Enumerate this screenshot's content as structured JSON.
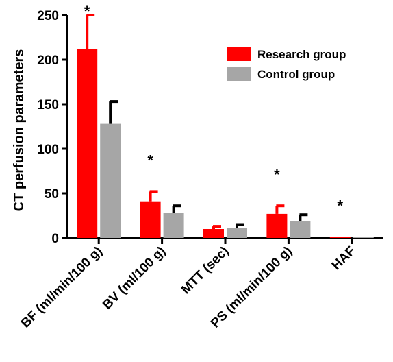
{
  "chart_data": {
    "type": "bar",
    "ylabel": "CT perfusion parameters",
    "xlabel": "",
    "ylim": [
      0,
      250
    ],
    "yticks": [
      0,
      50,
      100,
      150,
      200,
      250
    ],
    "ytick_labels": [
      "0",
      "50",
      "100",
      "150",
      "200",
      "250"
    ],
    "categories": [
      "BF (ml/min/100 g)",
      "BV (ml/100 g)",
      "MTT (sec)",
      "PS (ml/min/100 g)",
      "HAF"
    ],
    "series": [
      {
        "name": "Research group",
        "color": "#ff0000",
        "values": [
          212,
          41,
          10,
          27,
          1
        ],
        "error": [
          38,
          11,
          3,
          9,
          0
        ]
      },
      {
        "name": "Control group",
        "color": "#a6a6a6",
        "values": [
          128,
          28,
          11,
          19,
          1
        ],
        "error": [
          25,
          8,
          4,
          7,
          0
        ]
      }
    ],
    "significance_marker": "*",
    "significant_categories": [
      0,
      1,
      3,
      4
    ],
    "legend_position": "top-right",
    "grid": false
  }
}
